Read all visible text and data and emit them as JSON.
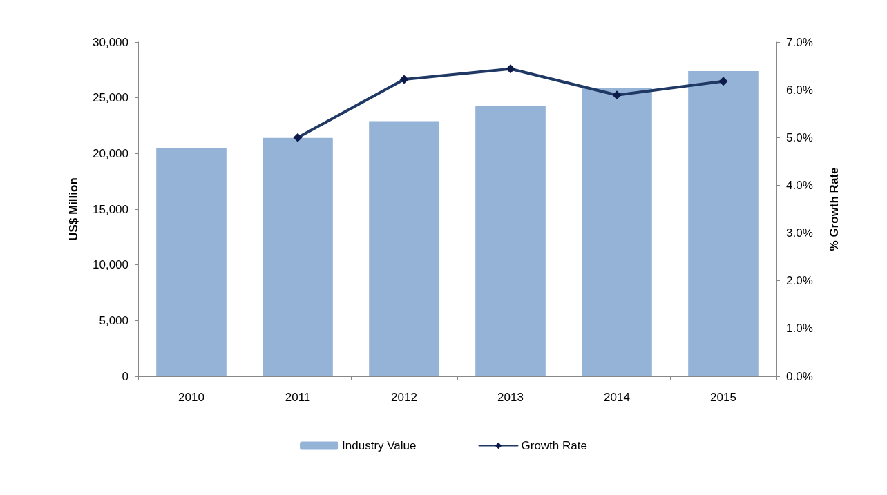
{
  "chart_data": {
    "type": "bar",
    "categories": [
      "2010",
      "2011",
      "2012",
      "2013",
      "2014",
      "2015"
    ],
    "series": [
      {
        "name": "Industry Value",
        "color": "#95b3d7",
        "values": [
          20500,
          21400,
          22900,
          24300,
          25900,
          27400
        ]
      },
      {
        "name": "Growth Rate",
        "type": "line",
        "axis": "y2",
        "color": "#1f3864",
        "marker": "diamond",
        "values": [
          null,
          5.0,
          6.22,
          6.44,
          5.89,
          6.18
        ]
      }
    ],
    "ylabel": "US$ Million",
    "y2label": "% Growth Rate",
    "ylim": [
      0,
      30000
    ],
    "yticks": [
      {
        "value": 0,
        "label": "0"
      },
      {
        "value": 5000,
        "label": "5,000"
      },
      {
        "value": 10000,
        "label": "10,000"
      },
      {
        "value": 15000,
        "label": "15,000"
      },
      {
        "value": 20000,
        "label": "20,000"
      },
      {
        "value": 25000,
        "label": "25,000"
      },
      {
        "value": 30000,
        "label": "30,000"
      }
    ],
    "y2lim": [
      0,
      7
    ],
    "y2ticks": [
      {
        "value": 0,
        "label": "0.0%"
      },
      {
        "value": 1,
        "label": "1.0%"
      },
      {
        "value": 2,
        "label": "2.0%"
      },
      {
        "value": 3,
        "label": "3.0%"
      },
      {
        "value": 4,
        "label": "4.0%"
      },
      {
        "value": 5,
        "label": "5.0%"
      },
      {
        "value": 6,
        "label": "6.0%"
      },
      {
        "value": 7,
        "label": "7.0%"
      }
    ],
    "grid": false,
    "legend": "bottom"
  }
}
